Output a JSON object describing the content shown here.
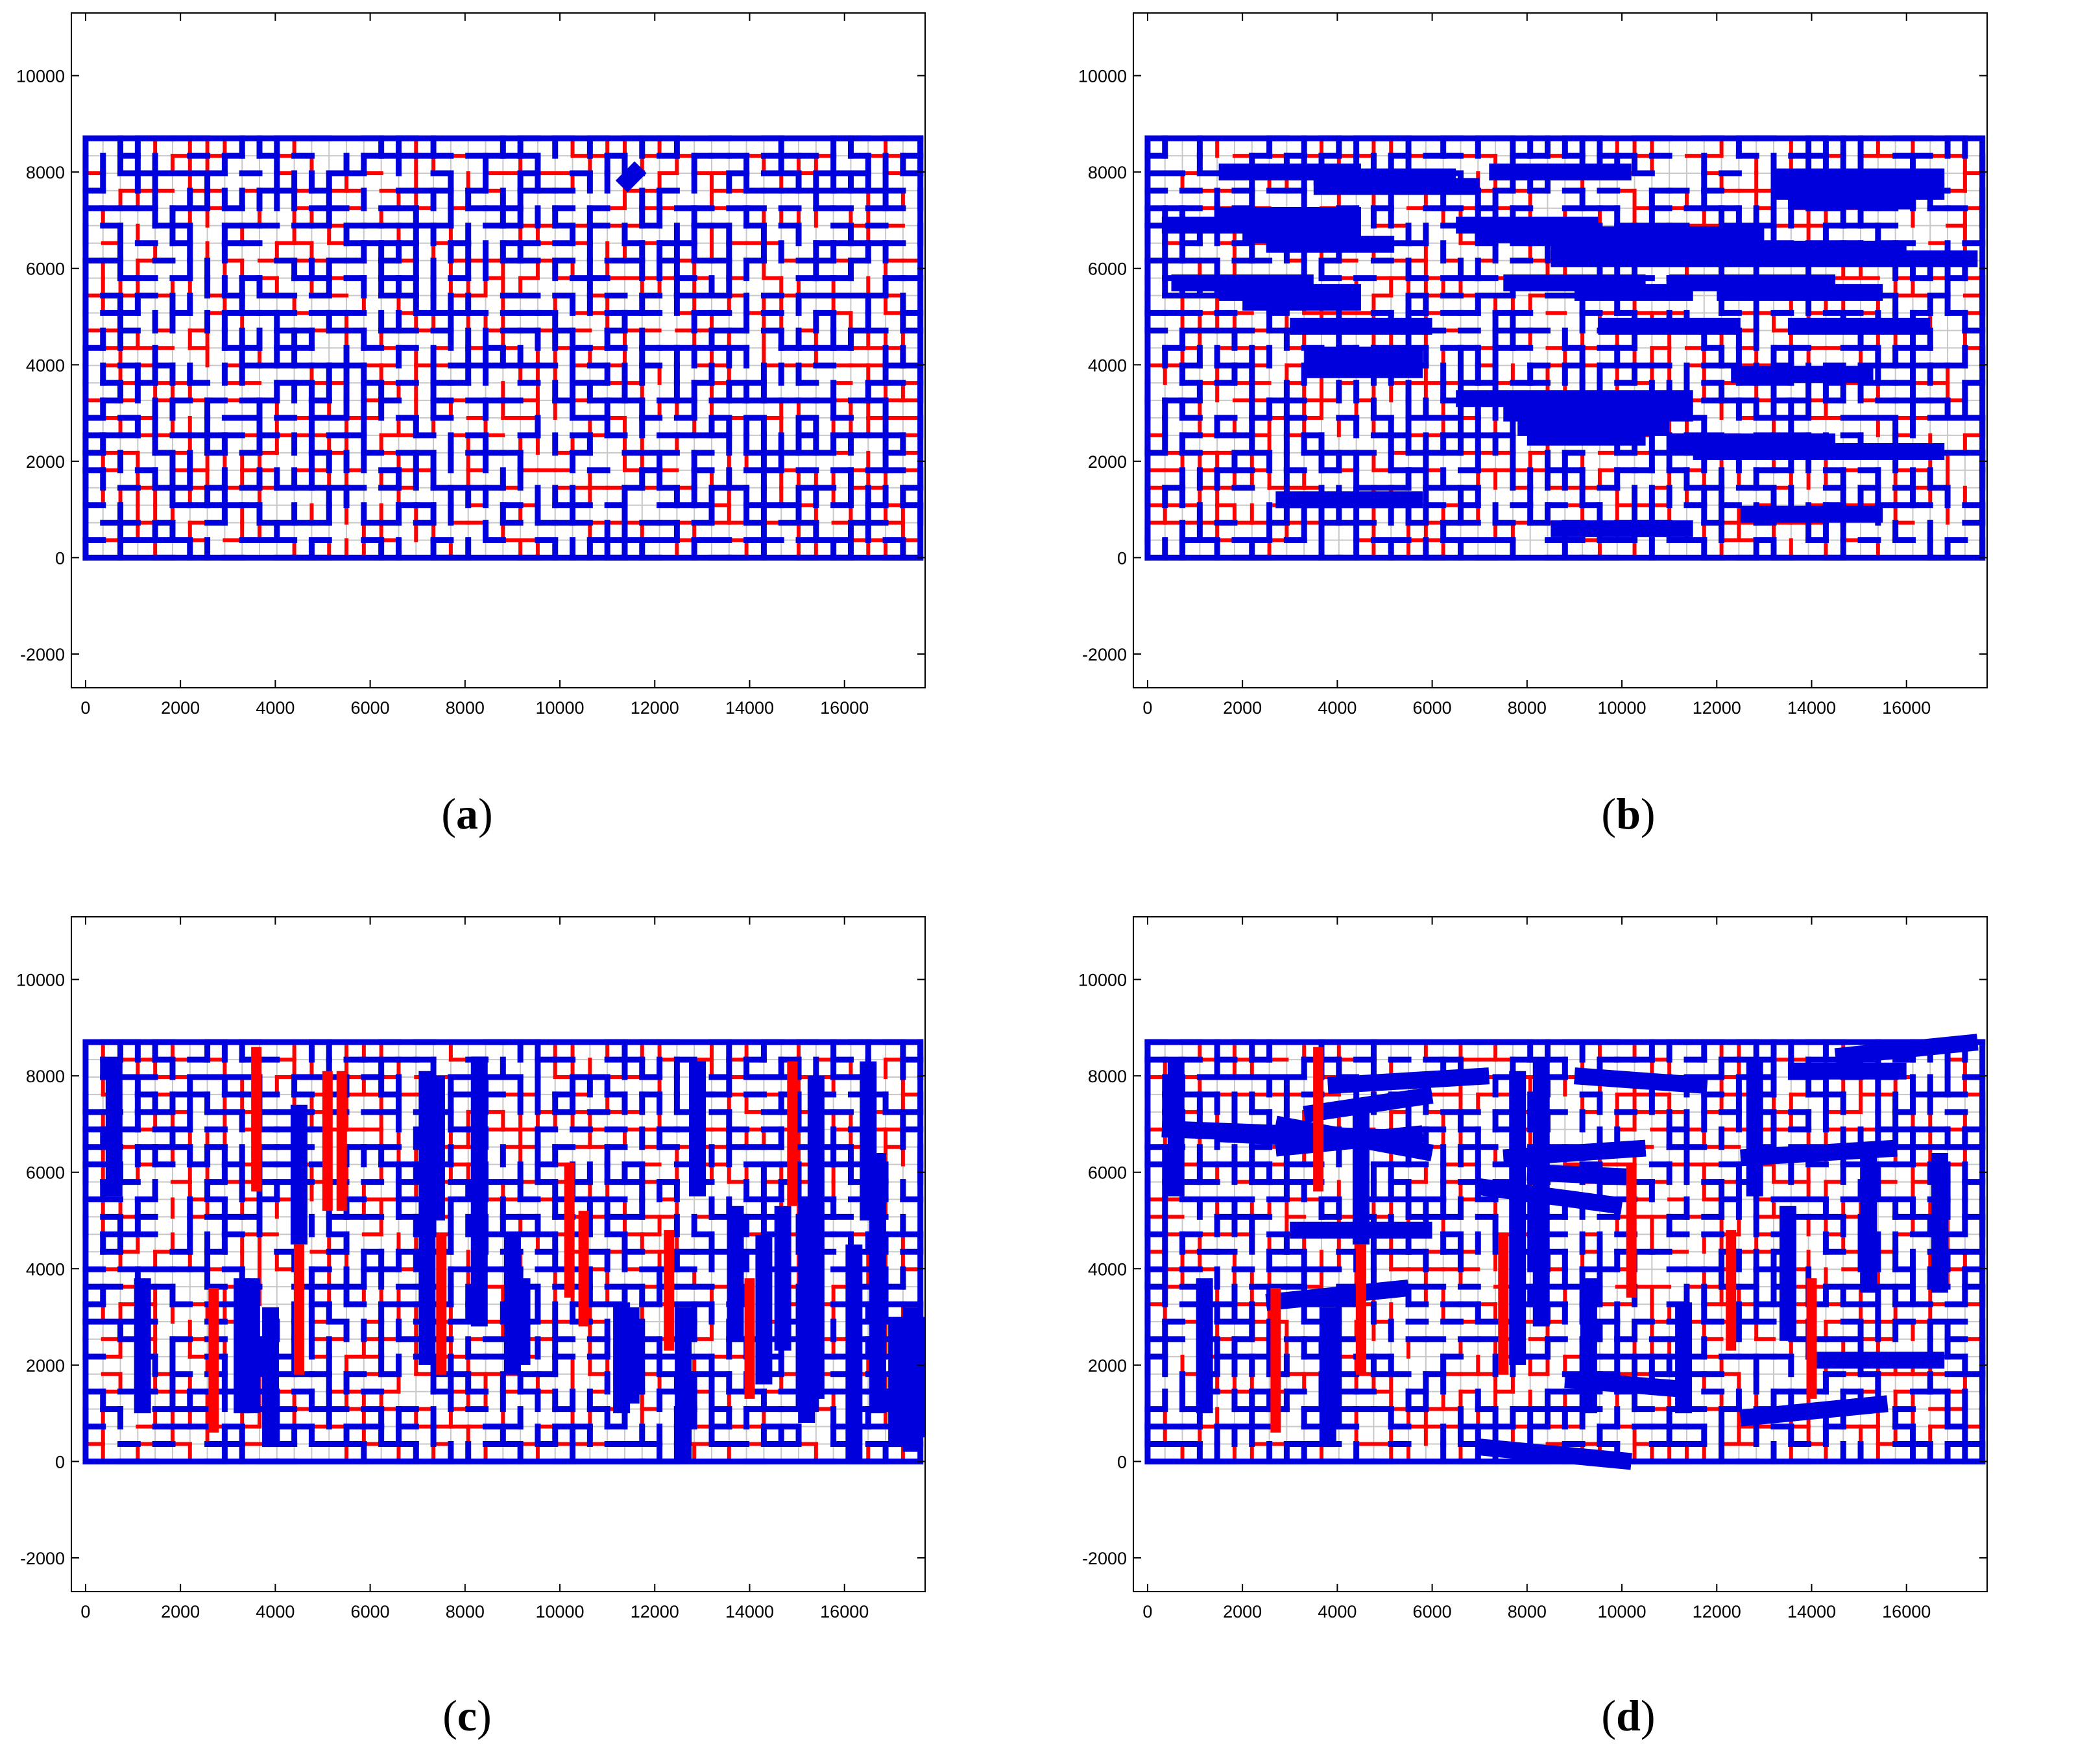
{
  "colors": {
    "blue": "#0000dc",
    "red": "#ff0000",
    "grid": "#c8c8c8",
    "axis": "#000000",
    "background": "#ffffff"
  },
  "chart_data": [
    {
      "type": "line",
      "caption": {
        "open": "(",
        "letter": "a",
        "close": ")"
      },
      "xlim": [
        -300,
        17700
      ],
      "ylim": [
        -2700,
        11300
      ],
      "xticks": [
        "0",
        "2000",
        "4000",
        "6000",
        "8000",
        "10000",
        "12000",
        "14000",
        "16000"
      ],
      "yticks": [
        "-2000",
        "0",
        "2000",
        "4000",
        "6000",
        "8000",
        "10000"
      ],
      "grid": false,
      "network_extent": {
        "x": [
          0,
          17600
        ],
        "y": [
          0,
          8700
        ]
      },
      "series": [
        {
          "color": "blue",
          "segments": [
            [
              11300,
              7700,
              11700,
              8100
            ]
          ]
        }
      ]
    },
    {
      "type": "line",
      "caption": {
        "open": "(",
        "letter": "b",
        "close": ")"
      },
      "xlim": [
        -300,
        17700
      ],
      "ylim": [
        -2700,
        11300
      ],
      "xticks": [
        "0",
        "2000",
        "4000",
        "6000",
        "8000",
        "10000",
        "12000",
        "14000",
        "16000"
      ],
      "yticks": [
        "-2000",
        "0",
        "2000",
        "4000",
        "6000",
        "8000",
        "10000"
      ],
      "grid": false,
      "network_extent": {
        "x": [
          0,
          17600
        ],
        "y": [
          0,
          8700
        ]
      },
      "series": [
        {
          "color": "blue",
          "segments": [
            [
              1500,
              8000,
              4500,
              8000
            ],
            [
              3500,
              7900,
              6500,
              7900
            ],
            [
              3500,
              7700,
              7000,
              7700
            ],
            [
              7200,
              8000,
              10200,
              8000
            ],
            [
              13200,
              7900,
              16800,
              7900
            ],
            [
              13200,
              7600,
              16800,
              7600
            ],
            [
              13500,
              7400,
              16200,
              7400
            ],
            [
              300,
              6900,
              4500,
              6900
            ],
            [
              1500,
              7100,
              4500,
              7100
            ],
            [
              2000,
              6700,
              4500,
              6700
            ],
            [
              2500,
              6500,
              5200,
              6500
            ],
            [
              6500,
              6900,
              9500,
              6900
            ],
            [
              6900,
              6700,
              13000,
              6700
            ],
            [
              8500,
              6400,
              16000,
              6400
            ],
            [
              8500,
              6200,
              17500,
              6200
            ],
            [
              500,
              5700,
              3500,
              5700
            ],
            [
              1500,
              5500,
              4500,
              5500
            ],
            [
              2000,
              5300,
              4500,
              5300
            ],
            [
              7500,
              5700,
              10500,
              5700
            ],
            [
              9000,
              5500,
              11500,
              5500
            ],
            [
              11000,
              5700,
              14500,
              5700
            ],
            [
              12000,
              5500,
              15500,
              5500
            ],
            [
              3000,
              4800,
              6000,
              4800
            ],
            [
              9500,
              4800,
              12500,
              4800
            ],
            [
              13500,
              4800,
              16500,
              4800
            ],
            [
              3300,
              4200,
              5800,
              4200
            ],
            [
              3300,
              3900,
              5800,
              3900
            ],
            [
              12300,
              3800,
              15300,
              3800
            ],
            [
              6500,
              3300,
              11500,
              3300
            ],
            [
              7500,
              3000,
              11500,
              3000
            ],
            [
              7800,
              2700,
              11000,
              2700
            ],
            [
              8000,
              2500,
              10500,
              2500
            ],
            [
              11000,
              2400,
              14500,
              2400
            ],
            [
              11500,
              2200,
              16800,
              2200
            ],
            [
              2700,
              1200,
              5800,
              1200
            ],
            [
              8500,
              600,
              11500,
              600
            ],
            [
              12500,
              900,
              15500,
              900
            ]
          ]
        }
      ]
    },
    {
      "type": "line",
      "caption": {
        "open": "(",
        "letter": "c",
        "close": ")"
      },
      "xlim": [
        -300,
        17700
      ],
      "ylim": [
        -2700,
        11300
      ],
      "xticks": [
        "0",
        "2000",
        "4000",
        "6000",
        "8000",
        "10000",
        "12000",
        "14000",
        "16000"
      ],
      "yticks": [
        "-2000",
        "0",
        "2000",
        "4000",
        "6000",
        "8000",
        "10000"
      ],
      "grid": false,
      "network_extent": {
        "x": [
          0,
          17600
        ],
        "y": [
          0,
          8700
        ]
      },
      "series": [
        {
          "color": "blue",
          "segments": [
            [
              600,
              5500,
              600,
              8300
            ],
            [
              1200,
              1000,
              1200,
              3800
            ],
            [
              3300,
              1000,
              3300,
              3800
            ],
            [
              3500,
              1000,
              3500,
              3800
            ],
            [
              3900,
              300,
              3900,
              3200
            ],
            [
              4500,
              4500,
              4500,
              7400
            ],
            [
              7200,
              2000,
              7200,
              8100
            ],
            [
              7400,
              5000,
              7400,
              8000
            ],
            [
              8300,
              2800,
              8300,
              8400
            ],
            [
              9000,
              1800,
              9000,
              4700
            ],
            [
              9200,
              2000,
              9200,
              3800
            ],
            [
              11300,
              1000,
              11300,
              3300
            ],
            [
              11500,
              1200,
              11500,
              3200
            ],
            [
              12600,
              0,
              12600,
              3200
            ],
            [
              12900,
              5500,
              12900,
              8300
            ],
            [
              13700,
              2500,
              13700,
              5300
            ],
            [
              14300,
              1600,
              14300,
              4700
            ],
            [
              14700,
              2300,
              14700,
              5300
            ],
            [
              15200,
              800,
              15200,
              5500
            ],
            [
              15400,
              1300,
              15400,
              8000
            ],
            [
              16200,
              0,
              16200,
              4500
            ],
            [
              16500,
              5000,
              16500,
              8300
            ],
            [
              16700,
              1000,
              16700,
              6400
            ],
            [
              17100,
              300,
              17100,
              3000
            ],
            [
              17400,
              200,
              17400,
              3200
            ],
            [
              17600,
              500,
              17600,
              3000
            ]
          ]
        },
        {
          "color": "red",
          "segments": [
            [
              2700,
              600,
              2700,
              3600
            ],
            [
              3600,
              5600,
              3600,
              8600
            ],
            [
              4500,
              1800,
              4500,
              4500
            ],
            [
              5100,
              5200,
              5100,
              8100
            ],
            [
              5400,
              5200,
              5400,
              8100
            ],
            [
              7500,
              1800,
              7500,
              4700
            ],
            [
              10200,
              3400,
              10200,
              6200
            ],
            [
              10500,
              2800,
              10500,
              5200
            ],
            [
              12300,
              2300,
              12300,
              4800
            ],
            [
              14000,
              1300,
              14000,
              3800
            ],
            [
              14900,
              5300,
              14900,
              8300
            ]
          ]
        }
      ]
    },
    {
      "type": "line",
      "caption": {
        "open": "(",
        "letter": "d",
        "close": ")"
      },
      "xlim": [
        -300,
        17700
      ],
      "ylim": [
        -2700,
        11300
      ],
      "xticks": [
        "0",
        "2000",
        "4000",
        "6000",
        "8000",
        "10000",
        "12000",
        "14000",
        "16000"
      ],
      "yticks": [
        "-2000",
        "0",
        "2000",
        "4000",
        "6000",
        "8000",
        "10000"
      ],
      "grid": false,
      "network_extent": {
        "x": [
          0,
          17600
        ],
        "y": [
          0,
          8700
        ]
      },
      "series": [
        {
          "color": "blue",
          "segments": [
            [
              600,
              5500,
              600,
              8300
            ],
            [
              1200,
              1000,
              1200,
              3800
            ],
            [
              3800,
              300,
              3800,
              3200
            ],
            [
              4500,
              4500,
              4500,
              7400
            ],
            [
              7800,
              2000,
              7800,
              8100
            ],
            [
              8300,
              2800,
              8300,
              8300
            ],
            [
              9300,
              1000,
              9300,
              3800
            ],
            [
              11300,
              1000,
              11300,
              3300
            ],
            [
              12800,
              5500,
              12800,
              8300
            ],
            [
              13500,
              2500,
              13500,
              5300
            ],
            [
              15200,
              3500,
              15200,
              6300
            ],
            [
              16700,
              3500,
              16700,
              6400
            ],
            [
              300,
              6900,
              5500,
              6700
            ],
            [
              1500,
              6800,
              5800,
              6600
            ],
            [
              2700,
              7000,
              6000,
              6400
            ],
            [
              3300,
              7200,
              6000,
              7600
            ],
            [
              3800,
              7800,
              7200,
              8000
            ],
            [
              2700,
              6500,
              5800,
              6800
            ],
            [
              3000,
              4800,
              6000,
              4800
            ],
            [
              2500,
              3300,
              5500,
              3600
            ],
            [
              7000,
              5700,
              10000,
              5300
            ],
            [
              7500,
              6300,
              10500,
              6500
            ],
            [
              8000,
              6000,
              10200,
              5900
            ],
            [
              9000,
              8000,
              11800,
              7800
            ],
            [
              12500,
              6300,
              15800,
              6500
            ],
            [
              13500,
              8100,
              16000,
              8100
            ],
            [
              14500,
              8400,
              17500,
              8700
            ],
            [
              14000,
              2100,
              16800,
              2100
            ],
            [
              12500,
              900,
              15600,
              1200
            ],
            [
              8800,
              1700,
              11300,
              1500
            ],
            [
              7000,
              300,
              10200,
              0
            ]
          ]
        },
        {
          "color": "red",
          "segments": [
            [
              2700,
              600,
              2700,
              3600
            ],
            [
              3600,
              5600,
              3600,
              8600
            ],
            [
              4500,
              1800,
              4500,
              4500
            ],
            [
              7500,
              1800,
              7500,
              4700
            ],
            [
              10200,
              3400,
              10200,
              6200
            ],
            [
              12300,
              2300,
              12300,
              4800
            ],
            [
              14000,
              1300,
              14000,
              3800
            ]
          ]
        }
      ]
    }
  ]
}
